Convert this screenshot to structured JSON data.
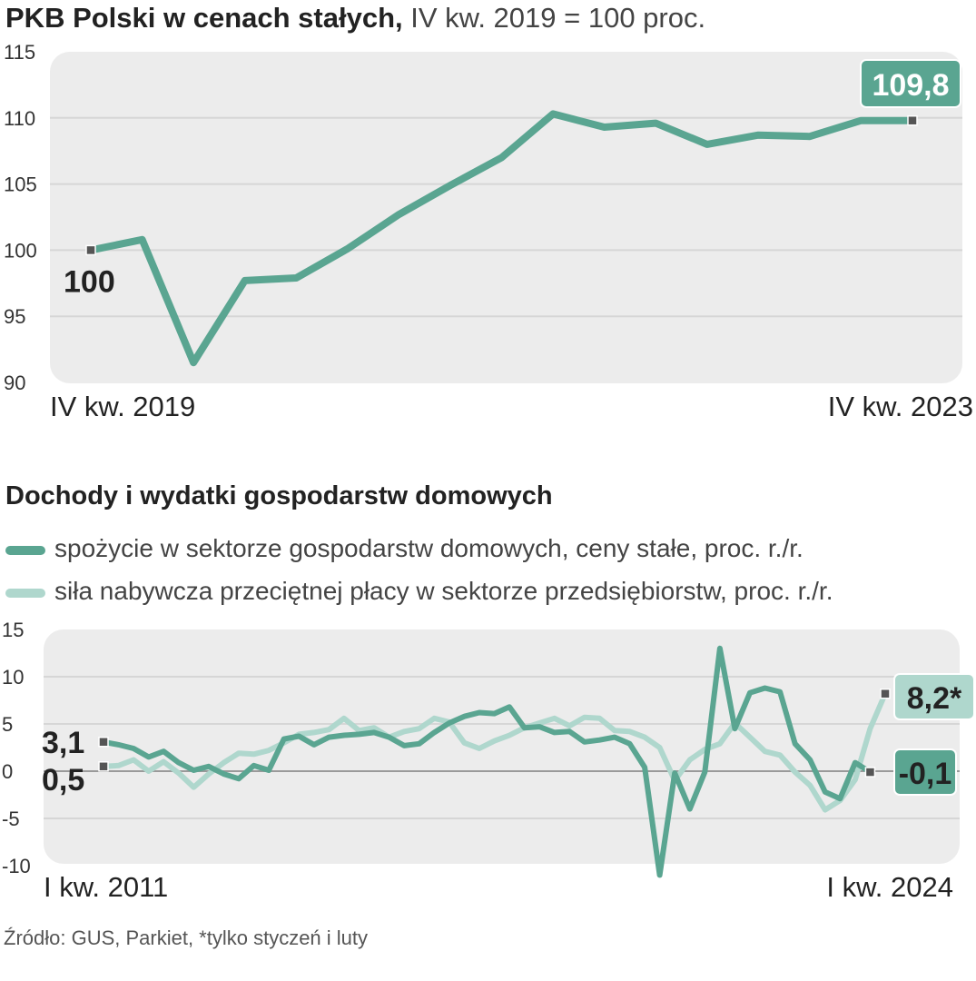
{
  "charts": {
    "gdp": {
      "title_bold": "PKB Polski w cenach stałych,",
      "title_rest": "IV kw. 2019 = 100 proc."
    },
    "household": {
      "title": "Dochody i wydatki gospodarstw domowych",
      "legend": [
        "spożycie w sektorze gospodarstw domowych, ceny stałe, proc. r./r.",
        "siła nabywcza przeciętnej płacy w sektorze przedsiębiorstw, proc. r./r."
      ]
    }
  },
  "source": "Źródło: GUS, Parkiet, *tylko styczeń i luty",
  "colors": {
    "dark_series": "#5aa591",
    "light_series": "#afd7cd",
    "panel_background": "#ececec",
    "grid": "#d6d6d6",
    "zero_line": "#9a9a9a"
  },
  "chart_data": [
    {
      "type": "line",
      "title": "PKB Polski w cenach stałych, IV kw. 2019 = 100 proc.",
      "ylim": [
        90,
        115
      ],
      "y_ticks": [
        "115",
        "110",
        "105",
        "100",
        "95",
        "90"
      ],
      "x_labels": {
        "start": "IV kw. 2019",
        "end": "IV kw. 2023"
      },
      "series": [
        {
          "values": [
            100,
            100.8,
            91.5,
            97.7,
            97.9,
            100.1,
            102.7,
            104.9,
            107.0,
            110.3,
            109.3,
            109.6,
            108.0,
            108.7,
            108.6,
            109.8,
            109.8
          ]
        }
      ],
      "annotations": {
        "start": "100",
        "end": "109,8"
      }
    },
    {
      "type": "line",
      "title": "Dochody i wydatki gospodarstw domowych",
      "ylim": [
        -10,
        15
      ],
      "y_ticks": [
        "15",
        "10",
        "5",
        "0",
        "-5",
        "-10"
      ],
      "x_labels": {
        "start": "I kw. 2011",
        "end": "I kw. 2024"
      },
      "series": [
        {
          "name": "spożycie w sektorze gospodarstw domowych, ceny stałe, proc. r./r.",
          "values": [
            3.1,
            2.8,
            2.4,
            1.5,
            2.1,
            0.9,
            0.1,
            0.5,
            -0.3,
            -0.8,
            0.6,
            0.1,
            3.4,
            3.7,
            2.8,
            3.6,
            3.8,
            3.9,
            4.1,
            3.6,
            2.7,
            2.9,
            4.1,
            5.1,
            5.8,
            6.2,
            6.1,
            6.8,
            4.6,
            4.7,
            4.1,
            4.2,
            3.1,
            3.3,
            3.6,
            2.9,
            0.4,
            -11.0,
            -0.2,
            -4.0,
            -0.1,
            13.0,
            4.5,
            8.3,
            8.8,
            8.4,
            2.9,
            1.2,
            -2.2,
            -2.9,
            0.9,
            -0.1
          ],
          "annotation": "3,1"
        },
        {
          "name": "siła nabywcza przeciętnej płacy w sektorze przedsiębiorstw, proc. r./r.",
          "values": [
            0.5,
            0.6,
            1.2,
            0.0,
            1.0,
            -0.2,
            -1.7,
            -0.3,
            0.9,
            1.9,
            1.8,
            2.2,
            3.0,
            3.9,
            4.1,
            4.4,
            5.6,
            4.3,
            4.6,
            3.6,
            4.2,
            4.5,
            5.6,
            5.2,
            3.0,
            2.4,
            3.2,
            3.8,
            4.6,
            5.1,
            5.6,
            4.8,
            5.7,
            5.6,
            4.3,
            4.2,
            3.6,
            2.5,
            -1.0,
            1.2,
            2.3,
            2.9,
            5.1,
            3.6,
            2.1,
            1.7,
            -0.1,
            -1.5,
            -4.1,
            -3.1,
            -0.9,
            4.5,
            8.2
          ],
          "annotation": "0,5"
        }
      ],
      "annotations": {
        "dark_end": "-0,1",
        "light_end": "8,2*"
      }
    }
  ]
}
